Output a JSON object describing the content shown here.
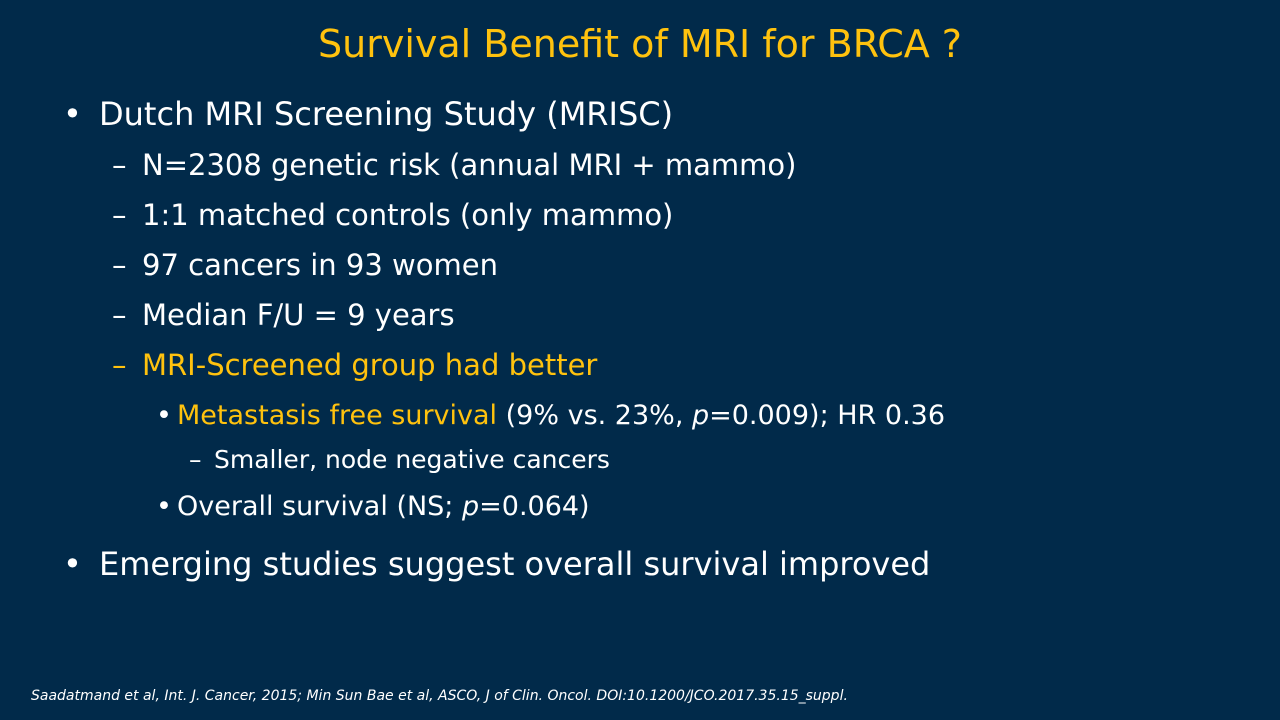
{
  "title": "Survival Benefit of MRI for BRCA ?",
  "markers": {
    "bullet": "•",
    "dash": "–"
  },
  "bullets": {
    "main1": "Dutch MRI Screening Study (MRISC)",
    "sub1": "N=2308 genetic risk (annual MRI + mammo)",
    "sub2": "1:1 matched controls (only mammo)",
    "sub3": "97 cancers in 93 women",
    "sub4": "Median F/U = 9 years",
    "sub5": "MRI-Screened group had better",
    "metastasis": {
      "label": "Metastasis free survival",
      "prefix": " (9% vs. 23%, ",
      "p_symbol": "p",
      "suffix": "=0.009); HR 0.36"
    },
    "sub_sub1": "Smaller, node negative cancers",
    "overall": {
      "prefix": "Overall survival (NS; ",
      "p_symbol": "p",
      "suffix": "=0.064)"
    },
    "main2": "Emerging studies suggest overall survival improved"
  },
  "citation": "Saadatmand et al, Int. J. Cancer, 2015; Min Sun Bae et al, ASCO, J of Clin. Oncol. DOI:10.1200/JCO.2017.35.15_suppl.",
  "colors": {
    "background": "#012A4A",
    "accent": "#FFC20E",
    "text": "#FFFFFF"
  }
}
